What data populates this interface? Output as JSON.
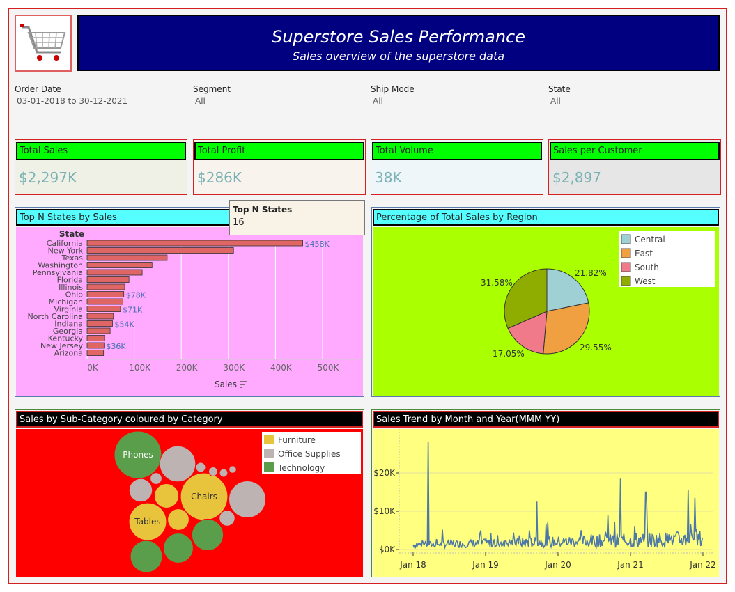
{
  "header": {
    "title": "Superstore Sales Performance",
    "subtitle": "Sales overview of the superstore data",
    "logo_icon": "shopping-cart-icon",
    "bg_color": "#000080"
  },
  "filters": [
    {
      "label": "Order Date",
      "value": "03-01-2018 to 30-12-2021"
    },
    {
      "label": "Segment",
      "value": "All"
    },
    {
      "label": "Ship Mode",
      "value": "All"
    },
    {
      "label": "State",
      "value": "All"
    }
  ],
  "kpis": [
    {
      "label": "Total Sales",
      "value": "$2,297K",
      "bg": "#eff1e6"
    },
    {
      "label": "Total Profit",
      "value": "$286K",
      "bg": "#f8f3ec"
    },
    {
      "label": "Total Volume",
      "value": "38K",
      "bg": "#eef6f9"
    },
    {
      "label": "Sales per Customer",
      "value": "$2,897",
      "bg": "#e6e6e6"
    }
  ],
  "tooltip": {
    "title": "Top N States",
    "value": "16"
  },
  "panels": {
    "states": "Top N States by Sales",
    "region": "Percentage of Total Sales by Region",
    "subcat": "Sales by Sub-Category coloured by Category",
    "trend": "Sales Trend by Month and Year(MMM YY)"
  },
  "chart_data": [
    {
      "type": "bar",
      "orientation": "horizontal",
      "title": "Top N States by Sales",
      "ylabel": "State",
      "xlabel": "Sales",
      "xlim": [
        0,
        540000
      ],
      "xticks": [
        "0K",
        "100K",
        "200K",
        "300K",
        "400K",
        "500K"
      ],
      "categories": [
        "California",
        "New York",
        "Texas",
        "Washington",
        "Pennsylvania",
        "Florida",
        "Illinois",
        "Ohio",
        "Michigan",
        "Virginia",
        "North Carolina",
        "Indiana",
        "Georgia",
        "Kentucky",
        "New Jersey",
        "Arizona"
      ],
      "values": [
        458000,
        311000,
        170000,
        138000,
        117000,
        89000,
        80000,
        78000,
        76000,
        71000,
        56000,
        54000,
        49000,
        37000,
        36000,
        35000
      ],
      "data_labels": [
        "$458K",
        "",
        "",
        "",
        "",
        "",
        "",
        "$78K",
        "",
        "$71K",
        "",
        "$54K",
        "",
        "",
        "$36K",
        ""
      ],
      "bar_color": "#e06666",
      "bg_color": "#ffaaff"
    },
    {
      "type": "pie",
      "title": "Percentage of Total Sales by Region",
      "labels": [
        "Central",
        "East",
        "South",
        "West"
      ],
      "values": [
        21.82,
        29.55,
        17.05,
        31.58
      ],
      "value_labels": [
        "21.82%",
        "29.55%",
        "17.05%",
        "31.58%"
      ],
      "colors": [
        "#9fd0d4",
        "#f0a040",
        "#f07a8a",
        "#8fad00"
      ],
      "legend_position": "top-right",
      "bg_color": "#aaff00"
    },
    {
      "type": "bubble",
      "title": "Sales by Sub-Category coloured by Category",
      "legend": [
        {
          "name": "Furniture",
          "color": "#e8c43c"
        },
        {
          "name": "Office Supplies",
          "color": "#bcb3b2"
        },
        {
          "name": "Technology",
          "color": "#5a9e4b"
        }
      ],
      "bubbles": [
        {
          "label": "Phones",
          "category": "Technology",
          "value": 330000
        },
        {
          "label": "Chairs",
          "category": "Furniture",
          "value": 328000
        },
        {
          "label": "Tables",
          "category": "Furniture",
          "value": 207000
        },
        {
          "label": "",
          "category": "Office Supplies",
          "value": 200000
        },
        {
          "label": "",
          "category": "Office Supplies",
          "value": 190000
        },
        {
          "label": "",
          "category": "Technology",
          "value": 150000
        },
        {
          "label": "",
          "category": "Technology",
          "value": 146000
        },
        {
          "label": "",
          "category": "Technology",
          "value": 131000
        },
        {
          "label": "",
          "category": "Furniture",
          "value": 88000
        },
        {
          "label": "",
          "category": "Office Supplies",
          "value": 80000
        },
        {
          "label": "",
          "category": "Furniture",
          "value": 68000
        },
        {
          "label": "",
          "category": "Office Supplies",
          "value": 36000
        },
        {
          "label": "",
          "category": "Office Supplies",
          "value": 20000
        },
        {
          "label": "",
          "category": "Office Supplies",
          "value": 14000
        },
        {
          "label": "",
          "category": "Office Supplies",
          "value": 12000
        },
        {
          "label": "",
          "category": "Office Supplies",
          "value": 10000
        },
        {
          "label": "",
          "category": "Office Supplies",
          "value": 8000
        }
      ],
      "bg_color": "#ff0000"
    },
    {
      "type": "line",
      "title": "Sales Trend by Month and Year(MMM YY)",
      "xticks": [
        "Jan 18",
        "Jan 19",
        "Jan 20",
        "Jan 21",
        "Jan 22"
      ],
      "yticks": [
        "$0K",
        "$10K",
        "$20K"
      ],
      "ylim": [
        0,
        30000
      ],
      "x_start": "2018-01-03",
      "x_end": "2021-12-30",
      "peaks": [
        {
          "date": "2018-03-18",
          "value": 28000
        },
        {
          "date": "2019-09-15",
          "value": 12500
        },
        {
          "date": "2020-09-10",
          "value": 9000
        },
        {
          "date": "2020-11-10",
          "value": 18500
        },
        {
          "date": "2021-03-20",
          "value": 15000
        },
        {
          "date": "2021-10-20",
          "value": 15500
        },
        {
          "date": "2021-11-20",
          "value": 13500
        }
      ],
      "line_color": "#4e79a7",
      "bg_color": "#ffff80"
    }
  ]
}
